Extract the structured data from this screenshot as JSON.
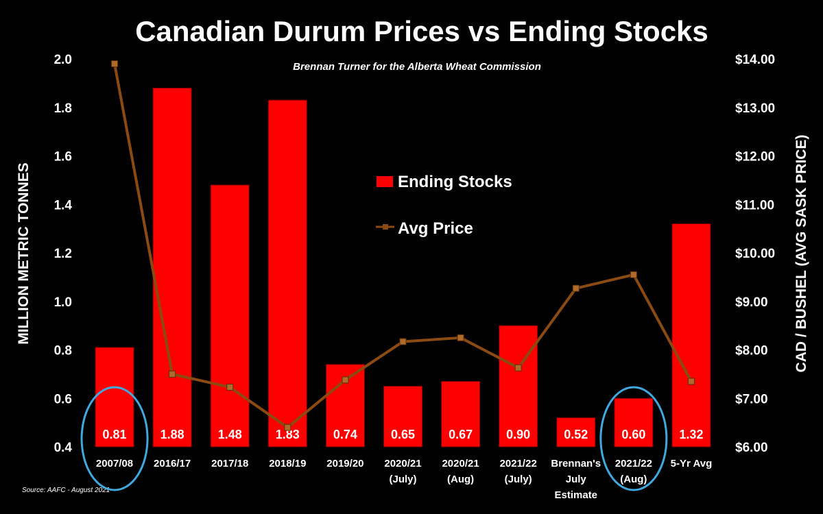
{
  "chart_data": {
    "type": "bar",
    "title": "Canadian Durum Prices vs Ending Stocks",
    "subtitle": "Brennan Turner for the Alberta Wheat Commission",
    "source": "Source: AAFC -  August 2021",
    "ylabel": "MILLION METRIC TONNES",
    "y2label": "CAD / BUSHEL (AVG SASK PRICE)",
    "ylim": [
      0.4,
      2.0
    ],
    "y2lim": [
      6.0,
      14.0
    ],
    "yticks": [
      "0.4",
      "0.6",
      "0.8",
      "1.0",
      "1.2",
      "1.4",
      "1.6",
      "1.8",
      "2.0"
    ],
    "y2ticks": [
      "$6.00",
      "$7.00",
      "$8.00",
      "$9.00",
      "$10.00",
      "$11.00",
      "$12.00",
      "$13.00",
      "$14.00"
    ],
    "categories": [
      [
        "2007/08"
      ],
      [
        "2016/17"
      ],
      [
        "2017/18"
      ],
      [
        "2018/19"
      ],
      [
        "2019/20"
      ],
      [
        "2020/21",
        "(July)"
      ],
      [
        "2020/21",
        "(Aug)"
      ],
      [
        "2021/22",
        "(July)"
      ],
      [
        "Brennan's",
        "July",
        "Estimate"
      ],
      [
        "2021/22",
        "(Aug)"
      ],
      [
        "5-Yr Avg"
      ]
    ],
    "series": [
      {
        "name": "Ending Stocks",
        "type": "bar",
        "axis": "left",
        "color": "#ff0000",
        "values": [
          0.81,
          1.88,
          1.48,
          1.83,
          0.74,
          0.65,
          0.67,
          0.9,
          0.52,
          0.6,
          1.32
        ],
        "labels": [
          "0.81",
          "1.88",
          "1.48",
          "1.83",
          "0.74",
          "0.65",
          "0.67",
          "0.90",
          "0.52",
          "0.60",
          "1.32"
        ]
      },
      {
        "name": "Avg Price",
        "type": "line",
        "axis": "right",
        "color": "#8b4a12",
        "values": [
          13.9,
          7.5,
          7.23,
          6.4,
          7.38,
          8.17,
          8.25,
          7.63,
          9.27,
          9.55,
          7.35
        ]
      }
    ],
    "highlighted_categories": [
      "2007/08",
      "2021/22 (Aug)"
    ],
    "highlight_color": "#3fa9e0",
    "legend_position": "center",
    "grid": false
  }
}
